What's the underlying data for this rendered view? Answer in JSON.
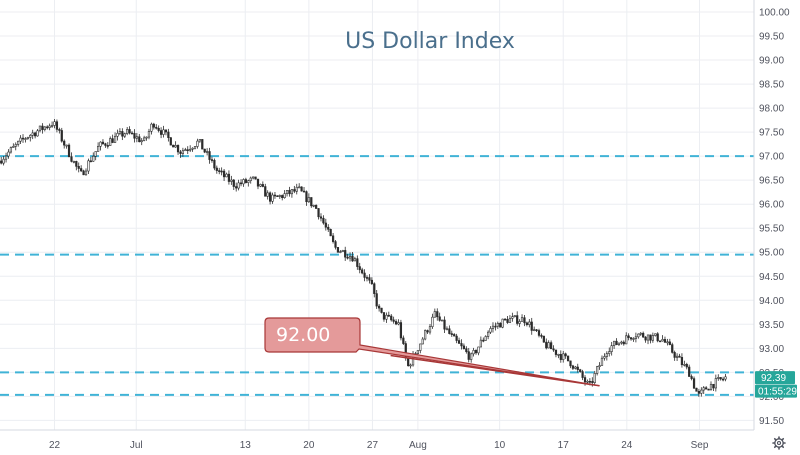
{
  "chart_data": {
    "type": "candlestick",
    "title": "US Dollar Index",
    "y_ticks": [
      "100.00",
      "99.50",
      "99.00",
      "98.50",
      "98.00",
      "97.50",
      "97.00",
      "96.50",
      "96.00",
      "95.50",
      "95.00",
      "94.50",
      "94.00",
      "93.50",
      "93.00",
      "92.50",
      "92.00",
      "91.50"
    ],
    "ylim": [
      91.3,
      100.25
    ],
    "x_ticks": [
      "22",
      "Jul",
      "13",
      "20",
      "27",
      "Aug",
      "10",
      "17",
      "24",
      "Sep"
    ],
    "x_range": [
      "2020-06-16",
      "2020-09-07"
    ],
    "horizontal_levels": [
      97.0,
      94.95,
      92.5,
      92.03
    ],
    "trendline": {
      "from": [
        "2020-07-29",
        92.85
      ],
      "to": [
        "2020-08-21",
        92.22
      ]
    },
    "callout_label": "92.00",
    "current_price": "92.39",
    "countdown": "01:55:29",
    "bar_count": 300,
    "keypoints": [
      [
        "2020-06-16",
        96.9
      ],
      [
        "2020-06-19",
        97.4
      ],
      [
        "2020-06-22",
        97.7
      ],
      [
        "2020-06-25",
        96.6
      ],
      [
        "2020-06-27",
        97.2
      ],
      [
        "2020-06-30",
        97.5
      ],
      [
        "2020-07-02",
        97.3
      ],
      [
        "2020-07-03",
        97.7
      ],
      [
        "2020-07-06",
        97.1
      ],
      [
        "2020-07-08",
        97.3
      ],
      [
        "2020-07-10",
        96.7
      ],
      [
        "2020-07-12",
        96.4
      ],
      [
        "2020-07-14",
        96.5
      ],
      [
        "2020-07-16",
        96.1
      ],
      [
        "2020-07-19",
        96.3
      ],
      [
        "2020-07-21",
        95.9
      ],
      [
        "2020-07-23",
        95.1
      ],
      [
        "2020-07-25",
        94.9
      ],
      [
        "2020-07-27",
        94.3
      ],
      [
        "2020-07-28",
        93.7
      ],
      [
        "2020-07-30",
        93.5
      ],
      [
        "2020-07-31",
        92.6
      ],
      [
        "2020-08-03",
        93.7
      ],
      [
        "2020-08-05",
        93.2
      ],
      [
        "2020-08-07",
        92.8
      ],
      [
        "2020-08-09",
        93.4
      ],
      [
        "2020-08-11",
        93.6
      ],
      [
        "2020-08-13",
        93.6
      ],
      [
        "2020-08-15",
        93.1
      ],
      [
        "2020-08-18",
        92.7
      ],
      [
        "2020-08-20",
        92.2
      ],
      [
        "2020-08-22",
        93.0
      ],
      [
        "2020-08-25",
        93.3
      ],
      [
        "2020-08-28",
        93.2
      ],
      [
        "2020-08-31",
        92.5
      ],
      [
        "2020-09-01",
        92.0
      ],
      [
        "2020-09-02",
        92.2
      ],
      [
        "2020-09-04",
        92.39
      ]
    ]
  },
  "colors": {
    "up": "#26a69a",
    "down": "#ef5350",
    "candle": "#2b2b2b",
    "level_line": "#40b3d6",
    "title": "#4a6f8c",
    "price_tag": "#26a69a",
    "countdown_tag": "#26a69a",
    "callout_fill": "#e49a9a",
    "callout_stroke": "#a83737",
    "grid": "#eceef2"
  },
  "icons": {
    "settings": "gear-icon"
  }
}
